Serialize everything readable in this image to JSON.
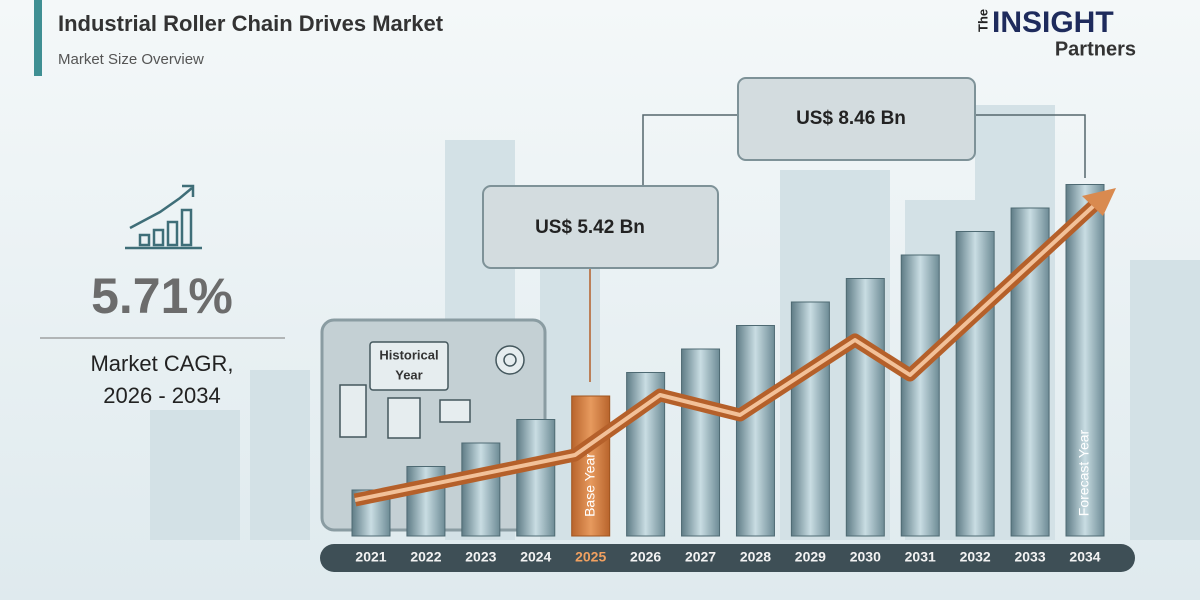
{
  "header": {
    "title": "Industrial Roller Chain Drives Market",
    "subtitle": "Market Size Overview"
  },
  "logo": {
    "prefix": "The",
    "name": "INSIGHT",
    "suffix": "Partners"
  },
  "cagr": {
    "value": "5.71%",
    "label": "Market CAGR,",
    "period": "2026 - 2034"
  },
  "callouts": [
    {
      "text": "US$ 5.42 Bn"
    },
    {
      "text": "US$ 8.46 Bn"
    }
  ],
  "historical_label": [
    "Historical",
    "Year"
  ],
  "base_year_label": "Base Year",
  "forecast_year_label": "Forecast Year",
  "years": [
    "2021",
    "2022",
    "2023",
    "2024",
    "2025",
    "2026",
    "2027",
    "2028",
    "2029",
    "2030",
    "2031",
    "2032",
    "2033",
    "2034"
  ]
}
